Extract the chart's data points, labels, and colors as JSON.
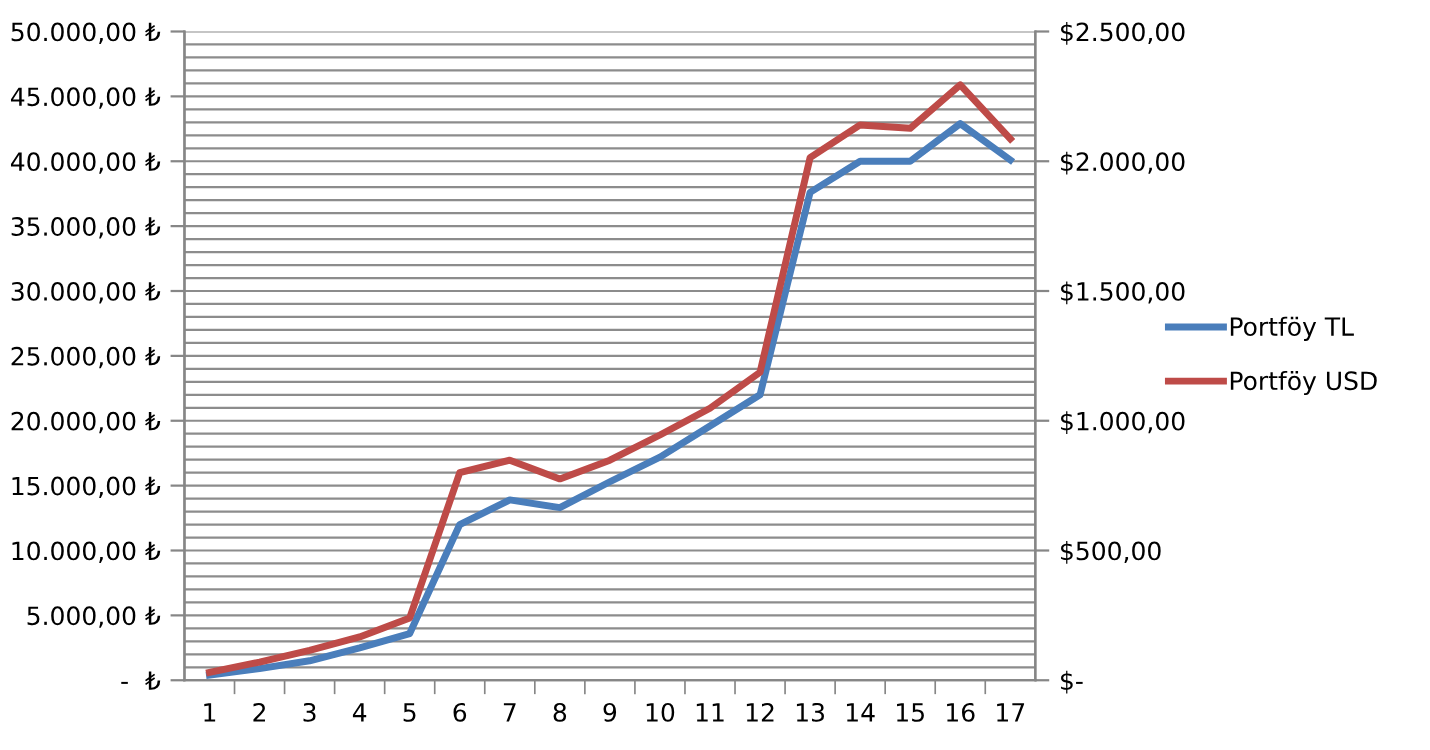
{
  "chart_data": {
    "type": "line",
    "categories": [
      "1",
      "2",
      "3",
      "4",
      "5",
      "6",
      "7",
      "8",
      "9",
      "10",
      "11",
      "12",
      "13",
      "14",
      "15",
      "16",
      "17"
    ],
    "series": [
      {
        "name": "Portföy TL",
        "color": "#4a7ebb",
        "values": [
          400,
          900,
          1500,
          2500,
          3600,
          12000,
          13900,
          13300,
          15300,
          17200,
          19600,
          22000,
          37600,
          40000,
          40000,
          42900,
          40100
        ]
      },
      {
        "name": "Portföy USD",
        "color": "#be4b48",
        "axis": "y2",
        "values": [
          30,
          70,
          115,
          167,
          240,
          800,
          848,
          776,
          848,
          945,
          1048,
          1187,
          2014,
          2140,
          2127,
          2294,
          2086
        ]
      }
    ],
    "ylim": [
      0,
      50000
    ],
    "yticks": [
      {
        "value": 0,
        "label": "-  ₺"
      },
      {
        "value": 1000,
        "label": null
      },
      {
        "value": 2000,
        "label": null
      },
      {
        "value": 3000,
        "label": null
      },
      {
        "value": 4000,
        "label": null
      },
      {
        "value": 5000,
        "label": "5.000,00 ₺"
      },
      {
        "value": 6000,
        "label": null
      },
      {
        "value": 7000,
        "label": null
      },
      {
        "value": 8000,
        "label": null
      },
      {
        "value": 9000,
        "label": null
      },
      {
        "value": 10000,
        "label": "10.000,00 ₺"
      },
      {
        "value": 11000,
        "label": null
      },
      {
        "value": 12000,
        "label": null
      },
      {
        "value": 13000,
        "label": null
      },
      {
        "value": 14000,
        "label": null
      },
      {
        "value": 15000,
        "label": "15.000,00 ₺"
      },
      {
        "value": 16000,
        "label": null
      },
      {
        "value": 17000,
        "label": null
      },
      {
        "value": 18000,
        "label": null
      },
      {
        "value": 19000,
        "label": null
      },
      {
        "value": 20000,
        "label": "20.000,00 ₺"
      },
      {
        "value": 21000,
        "label": null
      },
      {
        "value": 22000,
        "label": null
      },
      {
        "value": 23000,
        "label": null
      },
      {
        "value": 24000,
        "label": null
      },
      {
        "value": 25000,
        "label": "25.000,00 ₺"
      },
      {
        "value": 26000,
        "label": null
      },
      {
        "value": 27000,
        "label": null
      },
      {
        "value": 28000,
        "label": null
      },
      {
        "value": 29000,
        "label": null
      },
      {
        "value": 30000,
        "label": "30.000,00 ₺"
      },
      {
        "value": 31000,
        "label": null
      },
      {
        "value": 32000,
        "label": null
      },
      {
        "value": 33000,
        "label": null
      },
      {
        "value": 34000,
        "label": null
      },
      {
        "value": 35000,
        "label": "35.000,00 ₺"
      },
      {
        "value": 36000,
        "label": null
      },
      {
        "value": 37000,
        "label": null
      },
      {
        "value": 38000,
        "label": null
      },
      {
        "value": 39000,
        "label": null
      },
      {
        "value": 40000,
        "label": "40.000,00 ₺"
      },
      {
        "value": 41000,
        "label": null
      },
      {
        "value": 42000,
        "label": null
      },
      {
        "value": 43000,
        "label": null
      },
      {
        "value": 44000,
        "label": null
      },
      {
        "value": 45000,
        "label": "45.000,00 ₺"
      },
      {
        "value": 46000,
        "label": null
      },
      {
        "value": 47000,
        "label": null
      },
      {
        "value": 48000,
        "label": null
      },
      {
        "value": 49000,
        "label": null
      },
      {
        "value": 50000,
        "label": "50.000,00 ₺"
      }
    ],
    "y2lim": [
      0,
      2500
    ],
    "y2ticks": [
      {
        "value": 0,
        "label": "$-"
      },
      {
        "value": 500,
        "label": "$500,00"
      },
      {
        "value": 1000,
        "label": "$1.000,00"
      },
      {
        "value": 1500,
        "label": "$1.500,00"
      },
      {
        "value": 2000,
        "label": "$2.000,00"
      },
      {
        "value": 2500,
        "label": "$2.500,00"
      }
    ],
    "grid": "y",
    "legend": "right",
    "marker": "none",
    "line_style": "solid"
  }
}
